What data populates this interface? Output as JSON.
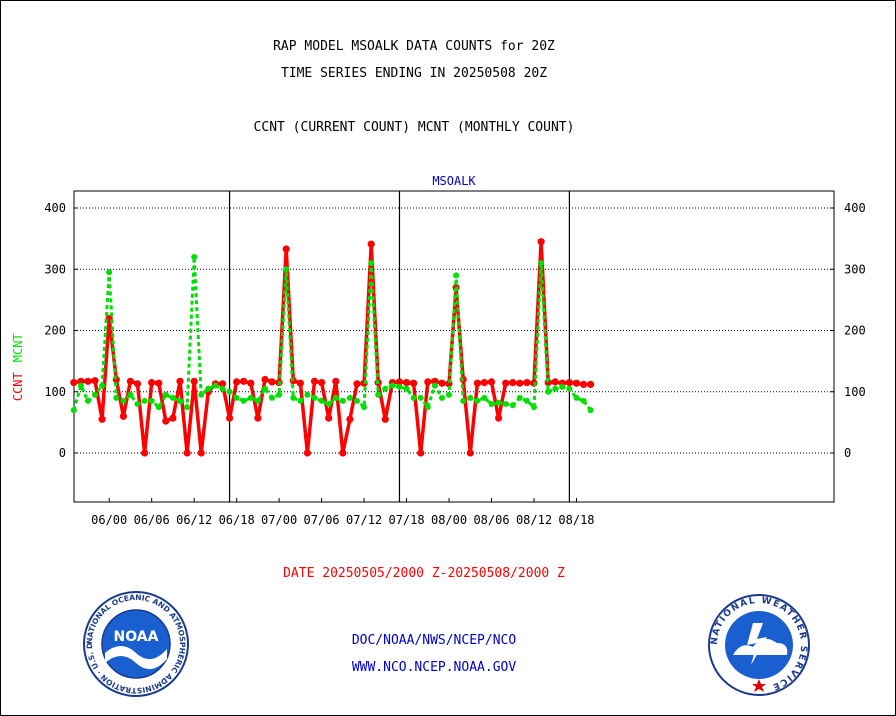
{
  "header": {
    "title_line1": "RAP MODEL MSOALK DATA COUNTS for 20Z",
    "title_line2": "TIME SERIES ENDING IN 20250508 20Z",
    "title_line3": "CCNT (CURRENT COUNT) MCNT (MONTHLY COUNT)"
  },
  "footer": {
    "date_range": "DATE 20250505/2000 Z-20250508/2000 Z",
    "link_org": "DOC/NOAA/NWS/NCEP/NCO",
    "link_site": "WWW.NCO.NCEP.NOAA.GOV"
  },
  "logos": {
    "noaa_text": "NOAA",
    "noaa_ring": "NATIONAL OCEANIC AND ATMOSPHERIC ADMINISTRATION · U.S. DEPARTMENT OF COMMERCE",
    "nws_ring": "NATIONAL WEATHER SERVICE"
  },
  "colors": {
    "ccnt": "#ff0000",
    "mcnt": "#00e000",
    "station": "#0000cc"
  },
  "chart_data": {
    "type": "line",
    "station_label": "MSOALK",
    "ylabel_ccnt": "CCNT",
    "ylabel_mcnt": "MCNT",
    "ylim": [
      -80,
      425
    ],
    "yticks": [
      0,
      100,
      200,
      300,
      400
    ],
    "x_unit": "hour index from 05/19Z (one point per hour)",
    "xlim": [
      0,
      73
    ],
    "xticks": [
      {
        "x": 5,
        "label": "06/00"
      },
      {
        "x": 11,
        "label": "06/06"
      },
      {
        "x": 17,
        "label": "06/12"
      },
      {
        "x": 23,
        "label": "06/18"
      },
      {
        "x": 29,
        "label": "07/00"
      },
      {
        "x": 35,
        "label": "07/06"
      },
      {
        "x": 41,
        "label": "07/12"
      },
      {
        "x": 47,
        "label": "07/18"
      },
      {
        "x": 53,
        "label": "08/00"
      },
      {
        "x": 59,
        "label": "08/06"
      },
      {
        "x": 65,
        "label": "08/12"
      },
      {
        "x": 71,
        "label": "08/18"
      }
    ],
    "day_boundaries": [
      22,
      46,
      70
    ],
    "grid": true,
    "series": [
      {
        "name": "CCNT",
        "values": [
          115,
          117,
          117,
          118,
          55,
          220,
          120,
          60,
          117,
          113,
          0,
          115,
          114,
          52,
          57,
          117,
          0,
          117,
          0,
          100,
          113,
          113,
          57,
          116,
          117,
          114,
          57,
          120,
          116,
          115,
          333,
          118,
          114,
          0,
          117,
          115,
          57,
          117,
          0,
          55,
          113,
          114,
          341,
          115,
          55,
          115,
          116,
          115,
          114,
          0,
          116,
          117,
          114,
          113,
          270,
          120,
          0,
          114,
          115,
          116,
          57,
          114,
          115,
          114,
          115,
          114,
          345,
          115,
          116,
          114,
          115,
          114,
          112,
          112
        ]
      },
      {
        "name": "MCNT",
        "values": [
          70,
          110,
          85,
          95,
          110,
          295,
          90,
          85,
          95,
          80,
          85,
          85,
          75,
          95,
          90,
          85,
          75,
          320,
          95,
          105,
          110,
          105,
          100,
          90,
          85,
          90,
          85,
          105,
          90,
          95,
          300,
          90,
          85,
          95,
          90,
          85,
          80,
          90,
          85,
          90,
          85,
          75,
          310,
          95,
          105,
          110,
          108,
          105,
          90,
          90,
          75,
          110,
          90,
          95,
          290,
          85,
          90,
          85,
          90,
          80,
          82,
          80,
          78,
          90,
          85,
          75,
          310,
          100,
          105,
          108,
          105,
          90,
          85,
          70
        ]
      }
    ]
  }
}
